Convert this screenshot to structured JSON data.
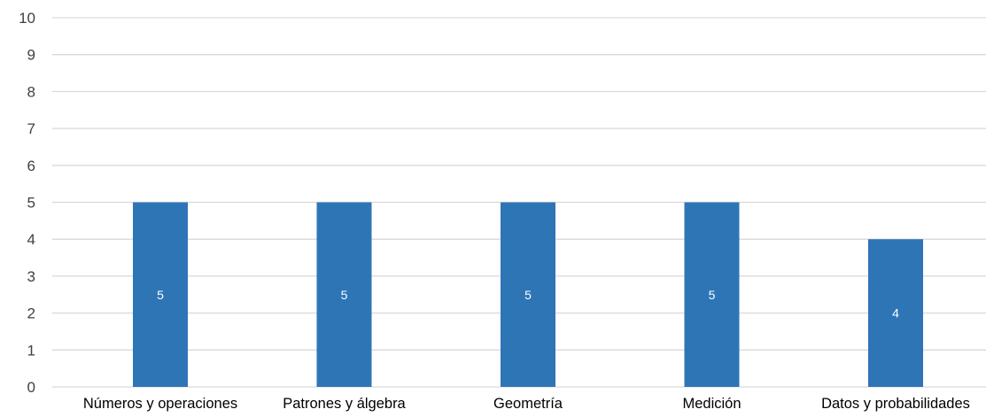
{
  "chart_data": {
    "type": "bar",
    "categories": [
      "Números y operaciones",
      "Patrones y álgebra",
      "Geometría",
      "Medición",
      "Datos y probabilidades"
    ],
    "values": [
      5,
      5,
      5,
      5,
      4
    ],
    "data_labels": [
      "5",
      "5",
      "5",
      "5",
      "4"
    ],
    "ylim": [
      0,
      10
    ],
    "y_ticks": [
      "0",
      "1",
      "2",
      "3",
      "4",
      "5",
      "6",
      "7",
      "8",
      "9",
      "10"
    ],
    "grid": true,
    "legend": "none",
    "colors": {
      "bar": "#2e75b6",
      "grid": "#d9d9d9",
      "label": "#ffffff",
      "axis_text": "#404040",
      "category_text": "#000000"
    }
  }
}
